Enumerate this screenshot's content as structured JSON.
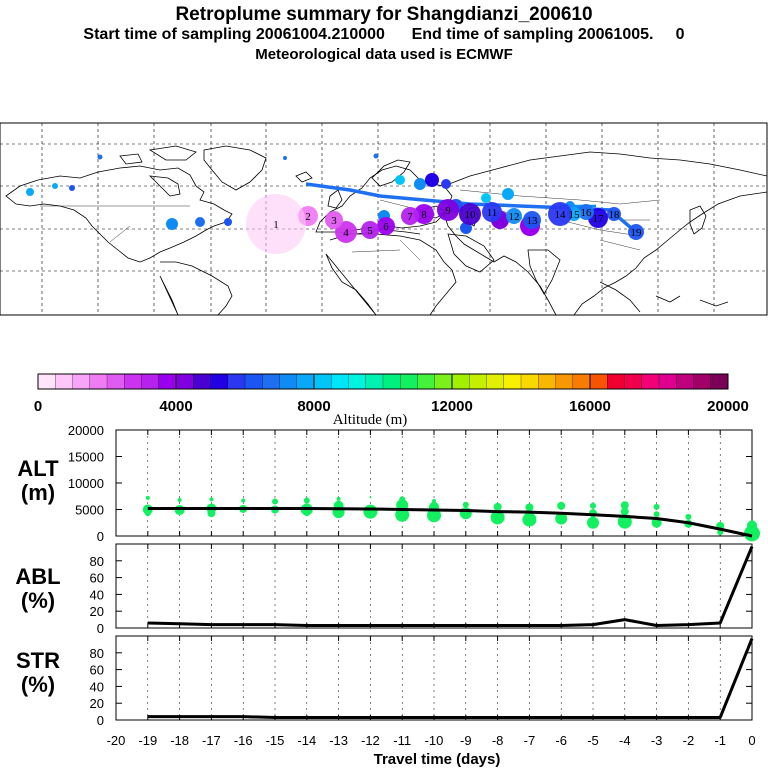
{
  "header": {
    "title": "Retroplume summary for Shangdianzi_200610",
    "subtitle": "Start time of sampling 20061004.210000      End time of sampling 20061005.     0",
    "met_line": "Meteorological data used is ECMWF"
  },
  "colorbar": {
    "label": "Altitude (m)",
    "tick_labels": [
      "0",
      "4000",
      "8000",
      "12000",
      "16000",
      "20000"
    ],
    "ticks": [
      0,
      4000,
      8000,
      12000,
      16000,
      20000
    ],
    "range": [
      0,
      20000
    ],
    "colors": [
      "#ffe4fa",
      "#ffc6f7",
      "#f8a4f8",
      "#f07cf4",
      "#e05cf0",
      "#cc33ee",
      "#b522ee",
      "#9b00ee",
      "#8000e0",
      "#4a00d0",
      "#2200e6",
      "#2a38f2",
      "#1b55f2",
      "#1e70f0",
      "#0f8cf4",
      "#0aa8f8",
      "#00c6f8",
      "#00e6f8",
      "#00f4e0",
      "#00f2b0",
      "#00f080",
      "#12f060",
      "#44f23c",
      "#7cf01a",
      "#a0f000",
      "#c4f000",
      "#e0f000",
      "#f8f000",
      "#f8d800",
      "#f8b800",
      "#f89800",
      "#f87c00",
      "#f85400",
      "#f00030",
      "#f0004c",
      "#f20078",
      "#e00090",
      "#c0007c",
      "#a00068",
      "#7a0058"
    ]
  },
  "panels": {
    "alt_label": [
      "ALT",
      "(m)"
    ],
    "abl_label": [
      "ABL",
      "(%)"
    ],
    "str_label": [
      "STR",
      "(%)"
    ],
    "x_axis_label": "Travel time (days)",
    "x_tick_labels": [
      "-20",
      "-19",
      "-18",
      "-17",
      "-16",
      "-15",
      "-14",
      "-13",
      "-12",
      "-11",
      "-10",
      "-9",
      "-8",
      "-7",
      "-6",
      "-5",
      "-4",
      "-3",
      "-2",
      "-1",
      "0"
    ],
    "alt_tick_labels": [
      "0",
      "5000",
      "10000",
      "15000",
      "20000"
    ],
    "pct_tick_labels": [
      "0",
      "20",
      "40",
      "60",
      "80"
    ]
  },
  "map": {
    "markers": [
      {
        "label": "19",
        "color": "#1b55f2",
        "r": 8
      },
      {
        "label": "18",
        "color": "#1b55f2",
        "r": 7
      },
      {
        "label": "17",
        "color": "#2200e6",
        "r": 10
      },
      {
        "label": "16",
        "color": "#1e70f0",
        "r": 8
      },
      {
        "label": "15",
        "color": "#0aa8f8",
        "r": 7
      },
      {
        "label": "14",
        "color": "#2a38f2",
        "r": 12
      },
      {
        "label": "13",
        "color": "#1b55f2",
        "r": 9
      },
      {
        "label": "12",
        "color": "#0f8cf4",
        "r": 8
      },
      {
        "label": "11",
        "color": "#2a38f2",
        "r": 10
      },
      {
        "label": "10",
        "color": "#4a00d0",
        "r": 11
      },
      {
        "label": "9",
        "color": "#8000e0",
        "r": 11
      },
      {
        "label": "8",
        "color": "#9b00ee",
        "r": 10
      },
      {
        "label": "7",
        "color": "#b522ee",
        "r": 9
      },
      {
        "label": "6",
        "color": "#9b00ee",
        "r": 9
      },
      {
        "label": "5",
        "color": "#b522ee",
        "r": 9
      },
      {
        "label": "4",
        "color": "#cc33ee",
        "r": 11
      },
      {
        "label": "3",
        "color": "#e05cf0",
        "r": 9
      },
      {
        "label": "2",
        "color": "#f07cf4",
        "r": 10
      },
      {
        "label": "1",
        "color": "#ffc6f7",
        "r": 30
      }
    ]
  },
  "chart_data": [
    {
      "type": "line",
      "title": "ALT",
      "ylabel": "ALT (m)",
      "xlabel": "Travel time (days)",
      "x": [
        -19,
        -18,
        -17,
        -16,
        -15,
        -14,
        -13,
        -12,
        -11,
        -10,
        -9,
        -8,
        -7,
        -6,
        -5,
        -4,
        -3,
        -2,
        -1,
        0
      ],
      "y": [
        5200,
        5200,
        5200,
        5200,
        5200,
        5200,
        5150,
        5100,
        5000,
        4900,
        4800,
        4600,
        4500,
        4300,
        4000,
        3700,
        3300,
        2500,
        1300,
        0
      ],
      "xlim": [
        -20,
        0
      ],
      "ylim": [
        0,
        20000
      ],
      "scatter_color": "#12f060",
      "scatter_points": [
        {
          "x": -19,
          "y": 5000,
          "s": 5
        },
        {
          "x": -19,
          "y": 7200,
          "s": 2
        },
        {
          "x": -19,
          "y": 4300,
          "s": 3
        },
        {
          "x": -18,
          "y": 4900,
          "s": 5
        },
        {
          "x": -18,
          "y": 6800,
          "s": 2
        },
        {
          "x": -17,
          "y": 5200,
          "s": 5
        },
        {
          "x": -17,
          "y": 4300,
          "s": 4
        },
        {
          "x": -17,
          "y": 6900,
          "s": 2
        },
        {
          "x": -16,
          "y": 5100,
          "s": 4
        },
        {
          "x": -16,
          "y": 6700,
          "s": 2
        },
        {
          "x": -15,
          "y": 5000,
          "s": 4
        },
        {
          "x": -15,
          "y": 6500,
          "s": 3
        },
        {
          "x": -14,
          "y": 5000,
          "s": 6
        },
        {
          "x": -14,
          "y": 6700,
          "s": 3
        },
        {
          "x": -14,
          "y": 4300,
          "s": 3
        },
        {
          "x": -13,
          "y": 4500,
          "s": 6
        },
        {
          "x": -13,
          "y": 5700,
          "s": 5
        },
        {
          "x": -13,
          "y": 7000,
          "s": 2
        },
        {
          "x": -12,
          "y": 4600,
          "s": 7
        },
        {
          "x": -12,
          "y": 7300,
          "s": 1
        },
        {
          "x": -11,
          "y": 4000,
          "s": 7
        },
        {
          "x": -11,
          "y": 5800,
          "s": 6
        },
        {
          "x": -11,
          "y": 6900,
          "s": 3
        },
        {
          "x": -10,
          "y": 3900,
          "s": 7
        },
        {
          "x": -10,
          "y": 5500,
          "s": 5
        },
        {
          "x": -10,
          "y": 6600,
          "s": 2
        },
        {
          "x": -9,
          "y": 4300,
          "s": 6
        },
        {
          "x": -9,
          "y": 5900,
          "s": 3
        },
        {
          "x": -8,
          "y": 3500,
          "s": 7
        },
        {
          "x": -8,
          "y": 5500,
          "s": 4
        },
        {
          "x": -7,
          "y": 3100,
          "s": 7
        },
        {
          "x": -7,
          "y": 5400,
          "s": 4
        },
        {
          "x": -6,
          "y": 3300,
          "s": 6
        },
        {
          "x": -6,
          "y": 5700,
          "s": 4
        },
        {
          "x": -5,
          "y": 2500,
          "s": 6
        },
        {
          "x": -5,
          "y": 4300,
          "s": 4
        },
        {
          "x": -5,
          "y": 5700,
          "s": 3
        },
        {
          "x": -4,
          "y": 2700,
          "s": 7
        },
        {
          "x": -4,
          "y": 4600,
          "s": 4
        },
        {
          "x": -4,
          "y": 5800,
          "s": 4
        },
        {
          "x": -3,
          "y": 2500,
          "s": 5
        },
        {
          "x": -3,
          "y": 4100,
          "s": 3
        },
        {
          "x": -3,
          "y": 5500,
          "s": 3
        },
        {
          "x": -2,
          "y": 2300,
          "s": 4
        },
        {
          "x": -2,
          "y": 3600,
          "s": 3
        },
        {
          "x": -1,
          "y": 1900,
          "s": 4
        },
        {
          "x": -1,
          "y": 700,
          "s": 3
        },
        {
          "x": 0,
          "y": 500,
          "s": 8
        },
        {
          "x": 0,
          "y": 2000,
          "s": 5
        }
      ]
    },
    {
      "type": "line",
      "title": "ABL",
      "ylabel": "ABL (%)",
      "xlabel": "Travel time (days)",
      "x": [
        -19,
        -18,
        -17,
        -16,
        -15,
        -14,
        -13,
        -12,
        -11,
        -10,
        -9,
        -8,
        -7,
        -6,
        -5,
        -4,
        -3,
        -2,
        -1,
        0
      ],
      "y": [
        6,
        5,
        4,
        4,
        4,
        3,
        3,
        3,
        3,
        3,
        3,
        3,
        3,
        3,
        4,
        10,
        3,
        4,
        6,
        97
      ],
      "xlim": [
        -20,
        0
      ],
      "ylim": [
        0,
        100
      ]
    },
    {
      "type": "line",
      "title": "STR",
      "ylabel": "STR (%)",
      "xlabel": "Travel time (days)",
      "x": [
        -19,
        -18,
        -17,
        -16,
        -15,
        -14,
        -13,
        -12,
        -11,
        -10,
        -9,
        -8,
        -7,
        -6,
        -5,
        -4,
        -3,
        -2,
        -1,
        0
      ],
      "y": [
        4,
        4,
        4,
        4,
        3,
        3,
        3,
        3,
        3,
        3,
        3,
        3,
        3,
        3,
        3,
        3,
        3,
        3,
        3,
        97
      ],
      "xlim": [
        -20,
        0
      ],
      "ylim": [
        0,
        100
      ]
    }
  ]
}
